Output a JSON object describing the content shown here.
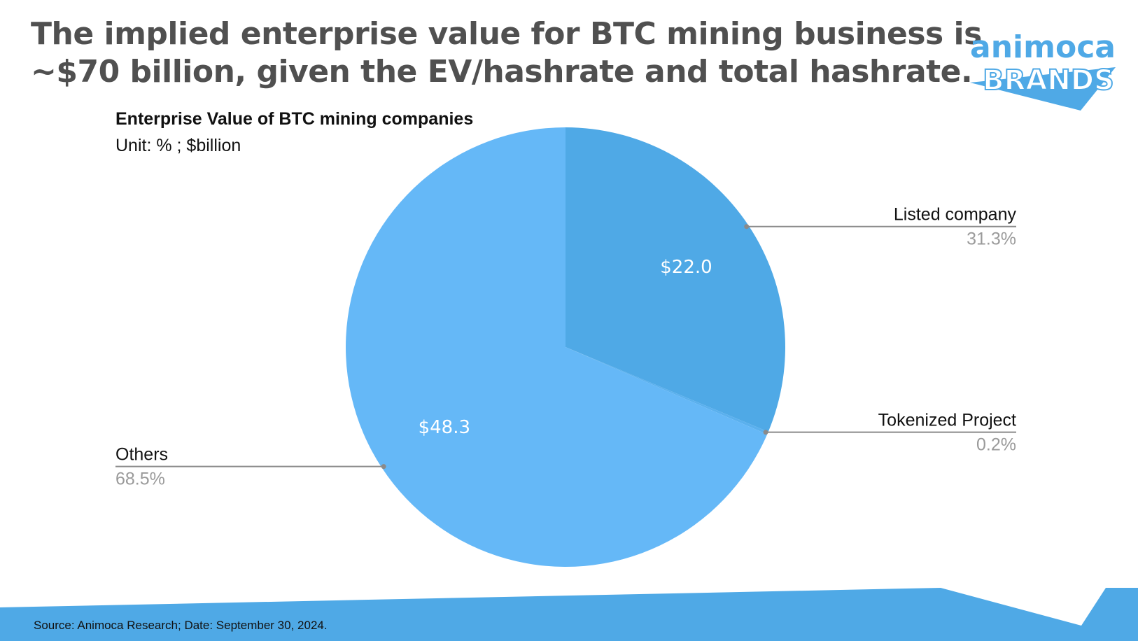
{
  "headline": {
    "line1": "The implied enterprise value for BTC mining business is",
    "line2": "~$70 billion, given the EV/hashrate and total hashrate."
  },
  "logo": {
    "line1": "animoca",
    "line2": "BRANDS"
  },
  "colors": {
    "accent": "#4fa9e6",
    "slice_listed": "#4fa9e6",
    "slice_others": "#65b8f7",
    "slice_tokenized": "#5ab0ee",
    "headline": "#505050",
    "leader": "#8a8a8a",
    "percent": "#9a9a9a"
  },
  "chart_data": {
    "type": "pie",
    "title": "Enterprise Value of BTC mining companies",
    "unit": "Unit: % ; $billion",
    "slices": [
      {
        "name": "Listed company",
        "percent_label": "31.3%",
        "percent": 31.3,
        "value_label": "$22.0",
        "value": 22.0
      },
      {
        "name": "Tokenized Project",
        "percent_label": "0.2%",
        "percent": 0.2,
        "value_label": "",
        "value": null
      },
      {
        "name": "Others",
        "percent_label": "68.5%",
        "percent": 68.5,
        "value_label": "$48.3",
        "value": 48.3
      }
    ]
  },
  "footer": {
    "source": "Source: Animoca Research; Date: September 30, 2024."
  }
}
